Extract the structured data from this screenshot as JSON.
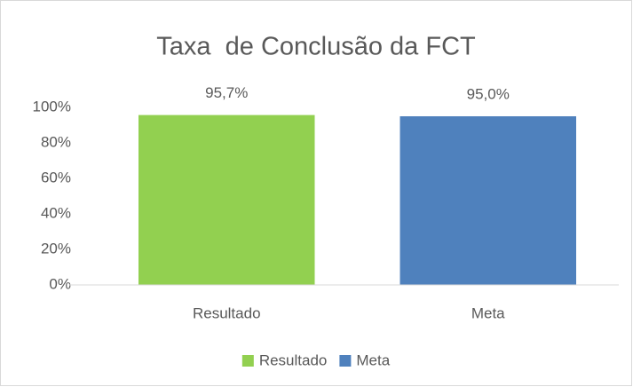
{
  "chart_data": {
    "type": "bar",
    "title": "Taxa  de Conclusão da FCT",
    "categories": [
      "Resultado",
      "Meta"
    ],
    "values": [
      95.7,
      95.0
    ],
    "value_labels": [
      "95,7%",
      "95,0%"
    ],
    "colors": [
      "#92d050",
      "#4f81bd"
    ],
    "ylim": [
      0,
      100
    ],
    "yticks": [
      {
        "value": 0,
        "label": "0%"
      },
      {
        "value": 20,
        "label": "20%"
      },
      {
        "value": 40,
        "label": "40%"
      },
      {
        "value": 60,
        "label": "60%"
      },
      {
        "value": 80,
        "label": "80%"
      },
      {
        "value": 100,
        "label": "100%"
      }
    ],
    "grid": false,
    "legend": "bottom"
  }
}
